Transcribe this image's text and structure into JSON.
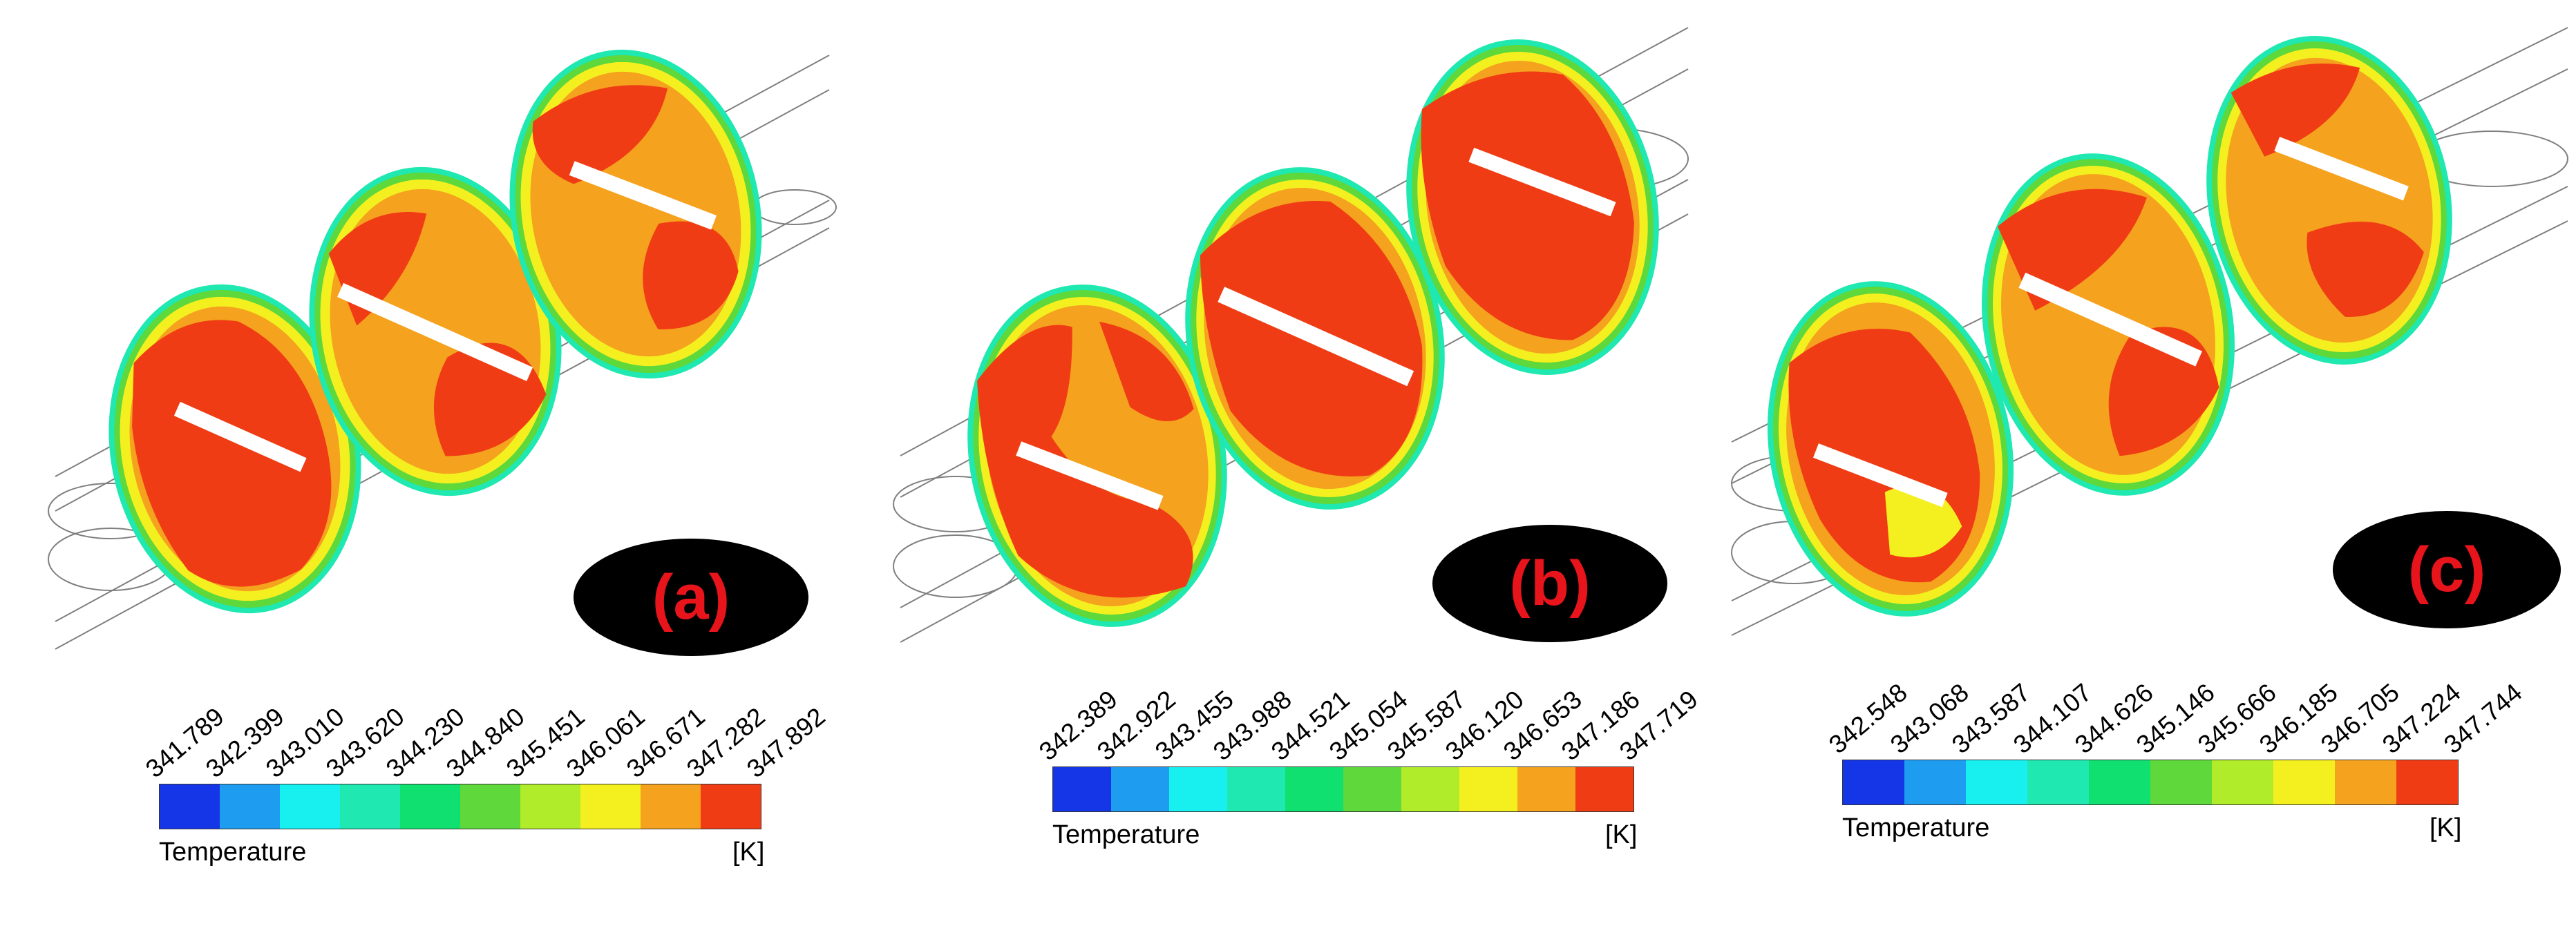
{
  "panels": [
    {
      "label": "(a)",
      "legend": {
        "quantity": "Temperature",
        "unit": "[K]",
        "ticks": [
          "341.789",
          "342.399",
          "343.010",
          "343.620",
          "344.230",
          "344.840",
          "345.451",
          "346.061",
          "346.671",
          "347.282",
          "347.892"
        ]
      }
    },
    {
      "label": "(b)",
      "legend": {
        "quantity": "Temperature",
        "unit": "[K]",
        "ticks": [
          "342.389",
          "342.922",
          "343.455",
          "343.988",
          "344.521",
          "345.054",
          "345.587",
          "346.120",
          "346.653",
          "347.186",
          "347.719"
        ]
      }
    },
    {
      "label": "(c)",
      "legend": {
        "quantity": "Temperature",
        "unit": "[K]",
        "ticks": [
          "342.548",
          "343.068",
          "343.587",
          "344.107",
          "344.626",
          "345.146",
          "345.666",
          "346.185",
          "346.705",
          "347.224",
          "347.744"
        ]
      }
    }
  ],
  "colormap": [
    "#1436e6",
    "#1e9cf0",
    "#18f0f0",
    "#1fe8b0",
    "#10e070",
    "#5ed83a",
    "#b0ec2a",
    "#f4f020",
    "#f5a21e",
    "#f03c14"
  ]
}
